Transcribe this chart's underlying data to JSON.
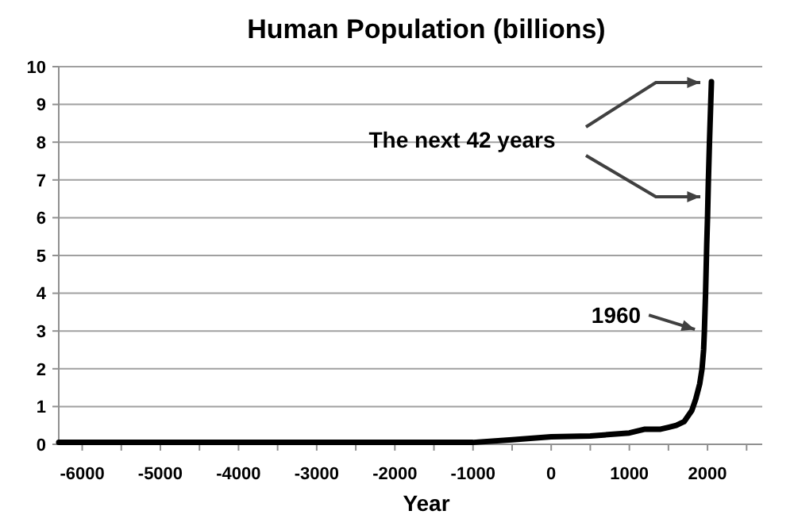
{
  "chart_data": {
    "type": "line",
    "title": "Human Population (billions)",
    "xlabel": "Year",
    "series": [
      {
        "color": "#000000",
        "x": [
          -6300,
          -5000,
          -4000,
          -3000,
          -2000,
          -1000,
          -500,
          0,
          500,
          1000,
          1200,
          1400,
          1500,
          1600,
          1700,
          1800,
          1850,
          1900,
          1930,
          1950,
          1960,
          1975,
          1990,
          2000,
          2010,
          2025,
          2050
        ],
        "values": [
          0.05,
          0.05,
          0.05,
          0.05,
          0.05,
          0.05,
          0.12,
          0.2,
          0.22,
          0.3,
          0.4,
          0.4,
          0.45,
          0.5,
          0.6,
          0.9,
          1.2,
          1.6,
          2,
          2.5,
          3,
          4,
          5.3,
          6,
          6.9,
          8,
          9.6
        ]
      }
    ],
    "xlim": [
      -6300,
      2700
    ],
    "xticks": [
      -6000,
      {
        "value": -5500,
        "label": null
      },
      -5000,
      {
        "value": -4500,
        "label": null
      },
      -4000,
      {
        "value": -3500,
        "label": null
      },
      -3000,
      {
        "value": -2500,
        "label": null
      },
      -2000,
      {
        "value": -1500,
        "label": null
      },
      -1000,
      {
        "value": -500,
        "label": null
      },
      0,
      {
        "value": 500,
        "label": null
      },
      1000,
      {
        "value": 1500,
        "label": null
      },
      2000,
      {
        "value": 2500,
        "label": null
      }
    ],
    "ylim": [
      0,
      10
    ],
    "yticks": [
      0,
      1,
      2,
      3,
      4,
      5,
      6,
      7,
      8,
      9,
      10
    ],
    "grid": "y",
    "marker": "none",
    "line_style": "solid",
    "annotations": [
      "The next 42 years",
      {
        "text": "1960",
        "x": 1960,
        "y": 3
      }
    ]
  }
}
